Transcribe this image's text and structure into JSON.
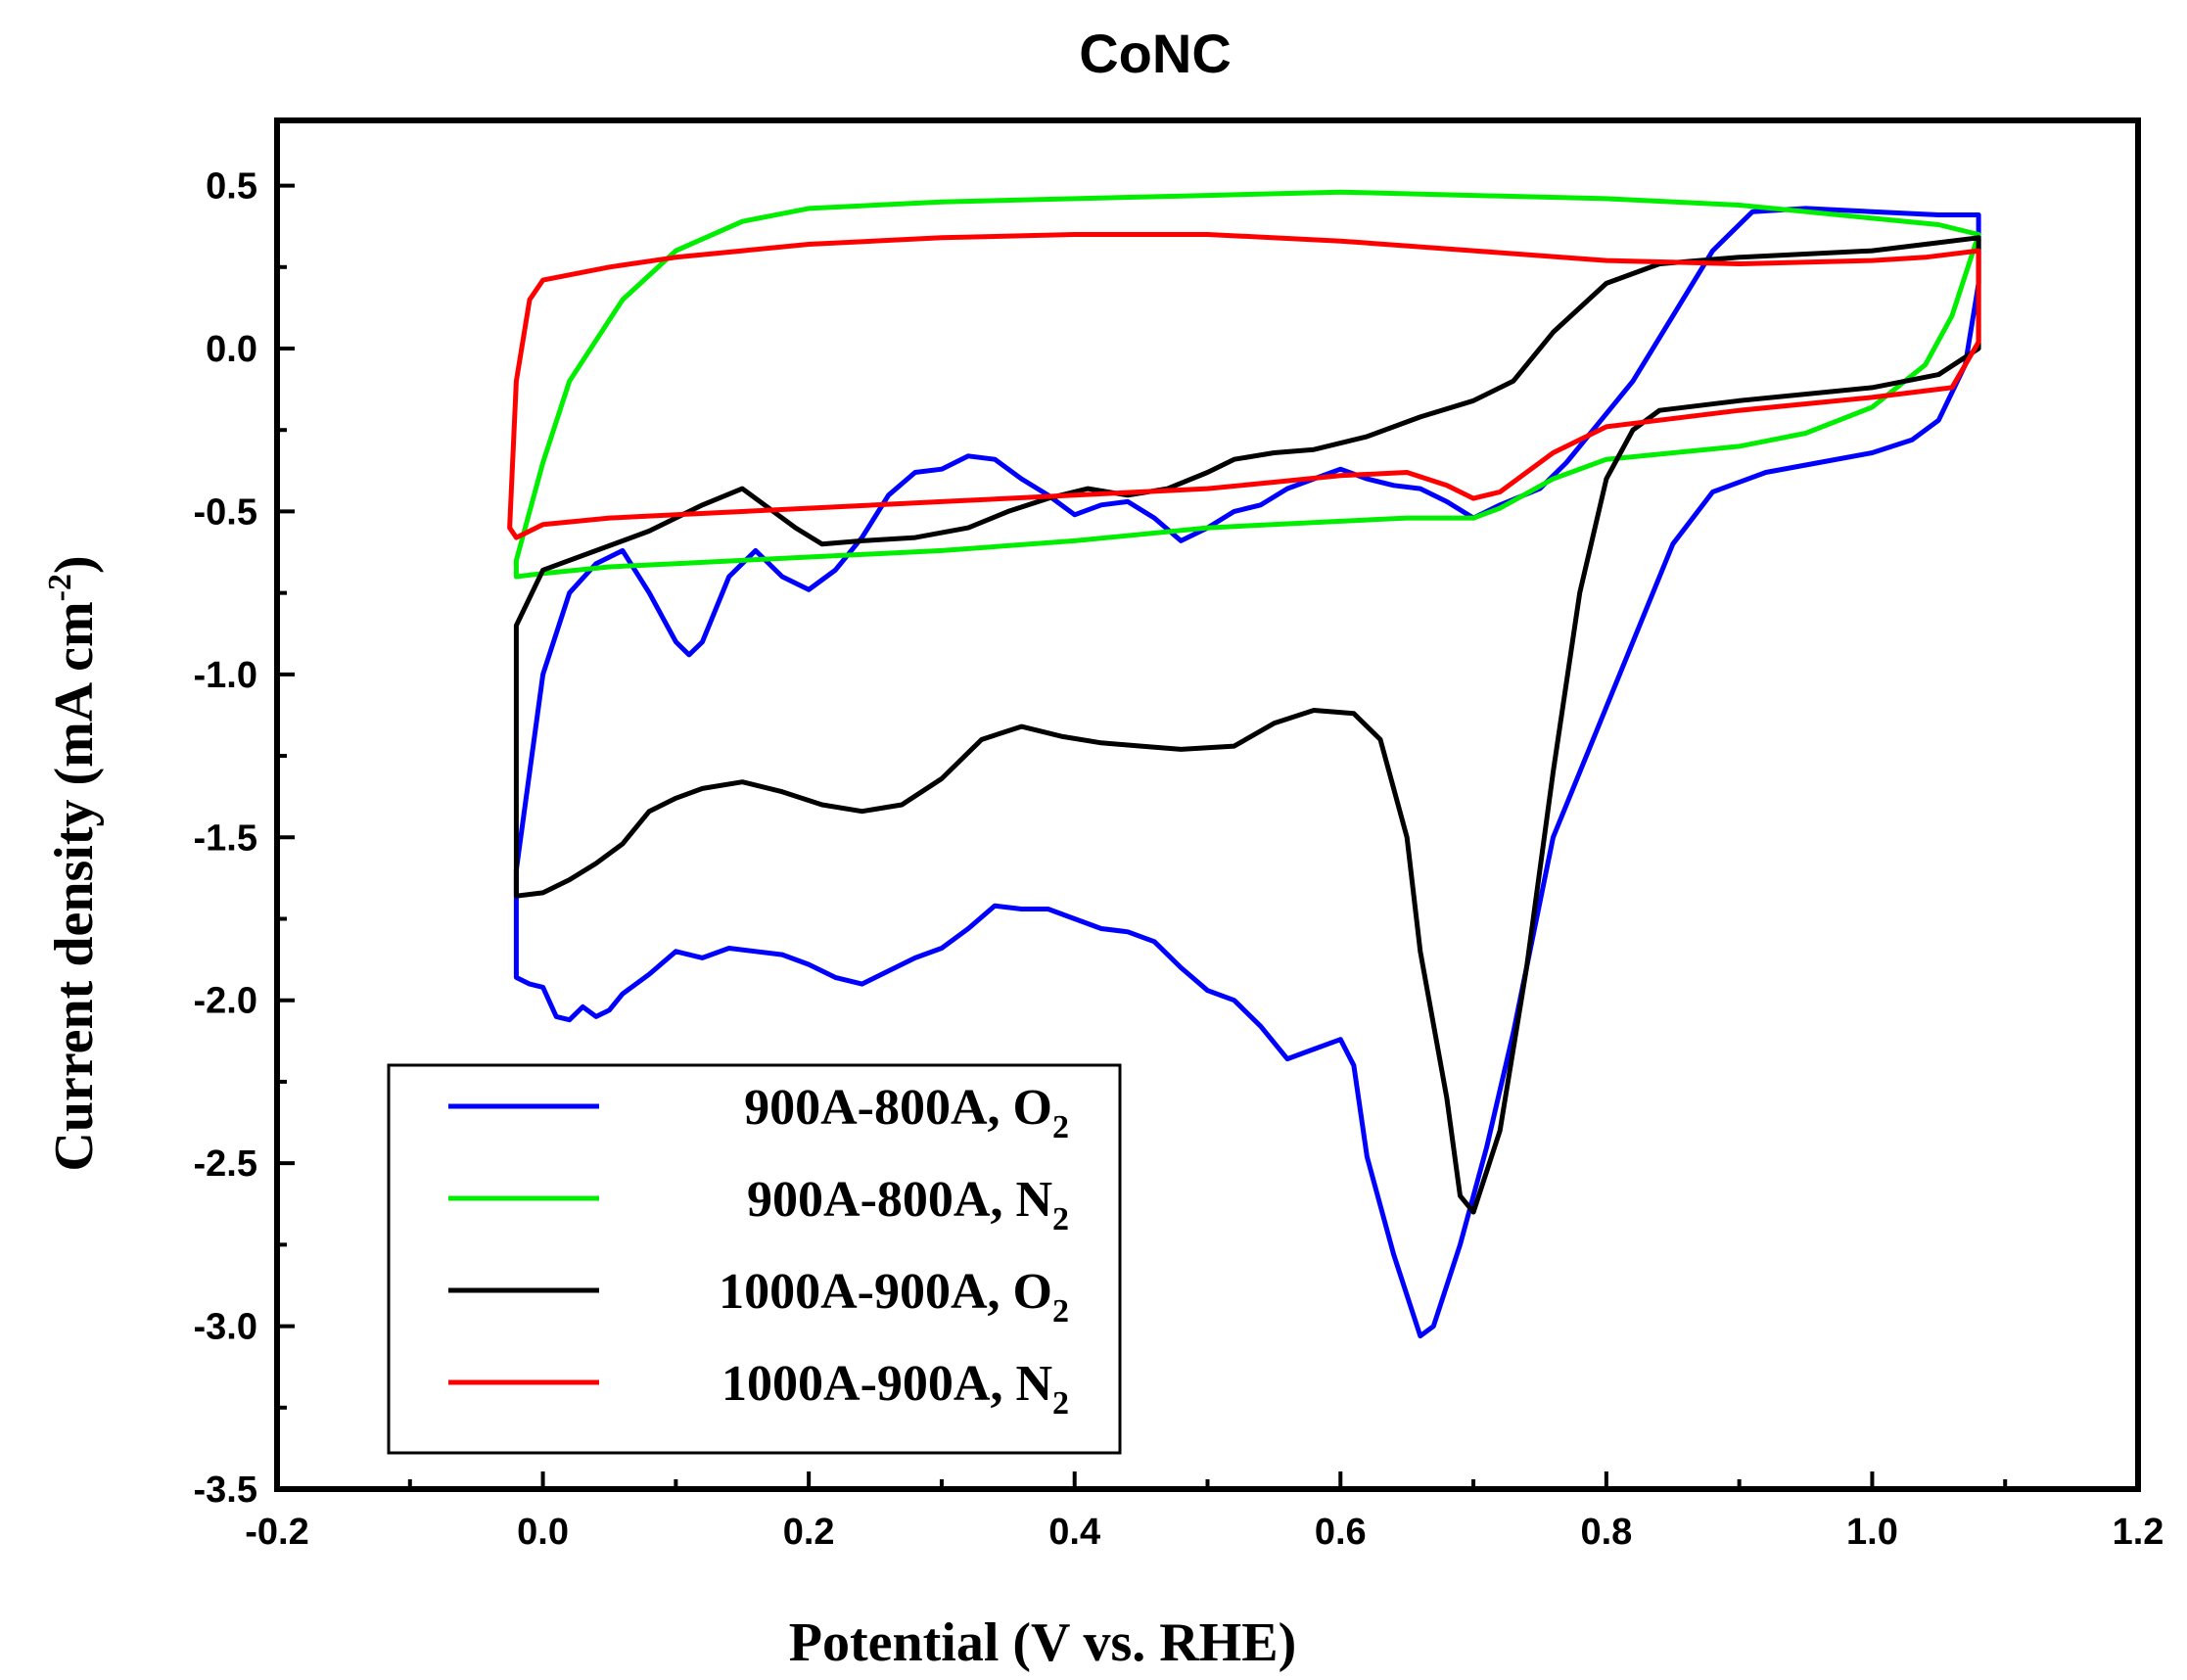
{
  "chart_data": {
    "type": "line",
    "title": "CoNC",
    "xlabel": "Potential (V vs. RHE)",
    "ylabel_main": "Current density (mA cm",
    "ylabel_sup": "-2",
    "ylabel_close": ")",
    "xlim": [
      -0.2,
      1.2
    ],
    "ylim": [
      -3.5,
      0.7
    ],
    "xticks": [
      -0.2,
      0.0,
      0.2,
      0.4,
      0.6,
      0.8,
      1.0,
      1.2
    ],
    "xtick_labels": [
      "-0.2",
      "0.0",
      "0.2",
      "0.4",
      "0.6",
      "0.8",
      "1.0",
      "1.2"
    ],
    "yticks": [
      0.5,
      0.0,
      -0.5,
      -1.0,
      -1.5,
      -2.0,
      -2.5,
      -3.0,
      -3.5
    ],
    "ytick_labels": [
      "0.5",
      "0.0",
      "-0.5",
      "-1.0",
      "-1.5",
      "-2.0",
      "-2.5",
      "-3.0",
      "-3.5"
    ],
    "legend_position": "bottom-left",
    "series": [
      {
        "name": "900A-800A, O2",
        "label_main": "900A-800A, O",
        "label_sub": "2",
        "color": "#0000ff",
        "points": [
          [
            -0.02,
            -1.93
          ],
          [
            -0.01,
            -1.95
          ],
          [
            0.0,
            -1.96
          ],
          [
            0.01,
            -2.05
          ],
          [
            0.02,
            -2.06
          ],
          [
            0.03,
            -2.02
          ],
          [
            0.04,
            -2.05
          ],
          [
            0.05,
            -2.03
          ],
          [
            0.06,
            -1.98
          ],
          [
            0.08,
            -1.92
          ],
          [
            0.1,
            -1.85
          ],
          [
            0.12,
            -1.87
          ],
          [
            0.14,
            -1.84
          ],
          [
            0.16,
            -1.85
          ],
          [
            0.18,
            -1.86
          ],
          [
            0.2,
            -1.89
          ],
          [
            0.22,
            -1.93
          ],
          [
            0.24,
            -1.95
          ],
          [
            0.26,
            -1.91
          ],
          [
            0.28,
            -1.87
          ],
          [
            0.3,
            -1.84
          ],
          [
            0.32,
            -1.78
          ],
          [
            0.34,
            -1.71
          ],
          [
            0.36,
            -1.72
          ],
          [
            0.38,
            -1.72
          ],
          [
            0.4,
            -1.75
          ],
          [
            0.42,
            -1.78
          ],
          [
            0.44,
            -1.79
          ],
          [
            0.46,
            -1.82
          ],
          [
            0.48,
            -1.9
          ],
          [
            0.5,
            -1.97
          ],
          [
            0.52,
            -2.0
          ],
          [
            0.54,
            -2.08
          ],
          [
            0.56,
            -2.18
          ],
          [
            0.58,
            -2.15
          ],
          [
            0.6,
            -2.12
          ],
          [
            0.61,
            -2.2
          ],
          [
            0.62,
            -2.48
          ],
          [
            0.64,
            -2.78
          ],
          [
            0.66,
            -3.03
          ],
          [
            0.67,
            -3.0
          ],
          [
            0.69,
            -2.75
          ],
          [
            0.71,
            -2.45
          ],
          [
            0.73,
            -2.1
          ],
          [
            0.76,
            -1.5
          ],
          [
            0.8,
            -1.1
          ],
          [
            0.83,
            -0.8
          ],
          [
            0.85,
            -0.6
          ],
          [
            0.88,
            -0.44
          ],
          [
            0.92,
            -0.38
          ],
          [
            0.96,
            -0.35
          ],
          [
            1.0,
            -0.32
          ],
          [
            1.03,
            -0.28
          ],
          [
            1.05,
            -0.22
          ],
          [
            1.07,
            -0.05
          ],
          [
            1.08,
            0.2
          ],
          [
            1.08,
            0.41
          ],
          [
            1.05,
            0.41
          ],
          [
            1.0,
            0.42
          ],
          [
            0.95,
            0.43
          ],
          [
            0.91,
            0.42
          ],
          [
            0.88,
            0.3
          ],
          [
            0.85,
            0.1
          ],
          [
            0.82,
            -0.1
          ],
          [
            0.79,
            -0.25
          ],
          [
            0.77,
            -0.35
          ],
          [
            0.75,
            -0.43
          ],
          [
            0.72,
            -0.48
          ],
          [
            0.7,
            -0.52
          ],
          [
            0.68,
            -0.47
          ],
          [
            0.66,
            -0.43
          ],
          [
            0.64,
            -0.42
          ],
          [
            0.62,
            -0.4
          ],
          [
            0.6,
            -0.37
          ],
          [
            0.58,
            -0.4
          ],
          [
            0.56,
            -0.43
          ],
          [
            0.54,
            -0.48
          ],
          [
            0.52,
            -0.5
          ],
          [
            0.5,
            -0.55
          ],
          [
            0.48,
            -0.59
          ],
          [
            0.46,
            -0.52
          ],
          [
            0.44,
            -0.47
          ],
          [
            0.42,
            -0.48
          ],
          [
            0.4,
            -0.51
          ],
          [
            0.38,
            -0.45
          ],
          [
            0.36,
            -0.4
          ],
          [
            0.34,
            -0.34
          ],
          [
            0.32,
            -0.33
          ],
          [
            0.3,
            -0.37
          ],
          [
            0.28,
            -0.38
          ],
          [
            0.26,
            -0.45
          ],
          [
            0.24,
            -0.58
          ],
          [
            0.22,
            -0.68
          ],
          [
            0.2,
            -0.74
          ],
          [
            0.18,
            -0.7
          ],
          [
            0.16,
            -0.62
          ],
          [
            0.14,
            -0.7
          ],
          [
            0.12,
            -0.9
          ],
          [
            0.11,
            -0.94
          ],
          [
            0.1,
            -0.9
          ],
          [
            0.08,
            -0.75
          ],
          [
            0.06,
            -0.62
          ],
          [
            0.04,
            -0.66
          ],
          [
            0.02,
            -0.75
          ],
          [
            0.0,
            -1.0
          ],
          [
            -0.02,
            -1.6
          ]
        ]
      },
      {
        "name": "900A-800A, N2",
        "label_main": "900A-800A, N",
        "label_sub": "2",
        "color": "#00ee00",
        "points": [
          [
            -0.02,
            -0.7
          ],
          [
            0.0,
            -0.69
          ],
          [
            0.05,
            -0.67
          ],
          [
            0.1,
            -0.66
          ],
          [
            0.2,
            -0.64
          ],
          [
            0.3,
            -0.62
          ],
          [
            0.4,
            -0.59
          ],
          [
            0.5,
            -0.55
          ],
          [
            0.6,
            -0.53
          ],
          [
            0.65,
            -0.52
          ],
          [
            0.7,
            -0.52
          ],
          [
            0.72,
            -0.49
          ],
          [
            0.76,
            -0.4
          ],
          [
            0.8,
            -0.34
          ],
          [
            0.9,
            -0.3
          ],
          [
            0.95,
            -0.26
          ],
          [
            1.0,
            -0.18
          ],
          [
            1.04,
            -0.05
          ],
          [
            1.06,
            0.1
          ],
          [
            1.08,
            0.35
          ],
          [
            1.05,
            0.38
          ],
          [
            1.0,
            0.4
          ],
          [
            0.9,
            0.44
          ],
          [
            0.8,
            0.46
          ],
          [
            0.7,
            0.47
          ],
          [
            0.6,
            0.48
          ],
          [
            0.5,
            0.47
          ],
          [
            0.4,
            0.46
          ],
          [
            0.3,
            0.45
          ],
          [
            0.2,
            0.43
          ],
          [
            0.15,
            0.39
          ],
          [
            0.1,
            0.3
          ],
          [
            0.06,
            0.15
          ],
          [
            0.02,
            -0.1
          ],
          [
            0.0,
            -0.35
          ],
          [
            -0.02,
            -0.65
          ]
        ]
      },
      {
        "name": "1000A-900A, O2",
        "label_main": "1000A-900A, O",
        "label_sub": "2",
        "color": "#000000",
        "points": [
          [
            -0.02,
            -1.68
          ],
          [
            0.0,
            -1.67
          ],
          [
            0.02,
            -1.63
          ],
          [
            0.04,
            -1.58
          ],
          [
            0.06,
            -1.52
          ],
          [
            0.08,
            -1.42
          ],
          [
            0.1,
            -1.38
          ],
          [
            0.12,
            -1.35
          ],
          [
            0.15,
            -1.33
          ],
          [
            0.18,
            -1.36
          ],
          [
            0.21,
            -1.4
          ],
          [
            0.24,
            -1.42
          ],
          [
            0.27,
            -1.4
          ],
          [
            0.3,
            -1.32
          ],
          [
            0.33,
            -1.2
          ],
          [
            0.36,
            -1.16
          ],
          [
            0.39,
            -1.19
          ],
          [
            0.42,
            -1.21
          ],
          [
            0.45,
            -1.22
          ],
          [
            0.48,
            -1.23
          ],
          [
            0.52,
            -1.22
          ],
          [
            0.55,
            -1.15
          ],
          [
            0.58,
            -1.11
          ],
          [
            0.61,
            -1.12
          ],
          [
            0.63,
            -1.2
          ],
          [
            0.65,
            -1.5
          ],
          [
            0.66,
            -1.85
          ],
          [
            0.68,
            -2.3
          ],
          [
            0.69,
            -2.6
          ],
          [
            0.7,
            -2.65
          ],
          [
            0.72,
            -2.4
          ],
          [
            0.74,
            -1.9
          ],
          [
            0.76,
            -1.3
          ],
          [
            0.78,
            -0.75
          ],
          [
            0.8,
            -0.4
          ],
          [
            0.82,
            -0.25
          ],
          [
            0.84,
            -0.19
          ],
          [
            0.9,
            -0.16
          ],
          [
            1.0,
            -0.12
          ],
          [
            1.05,
            -0.08
          ],
          [
            1.08,
            0.0
          ],
          [
            1.08,
            0.34
          ],
          [
            1.04,
            0.32
          ],
          [
            1.0,
            0.3
          ],
          [
            0.9,
            0.28
          ],
          [
            0.84,
            0.26
          ],
          [
            0.8,
            0.2
          ],
          [
            0.76,
            0.05
          ],
          [
            0.73,
            -0.1
          ],
          [
            0.7,
            -0.16
          ],
          [
            0.66,
            -0.21
          ],
          [
            0.62,
            -0.27
          ],
          [
            0.58,
            -0.31
          ],
          [
            0.55,
            -0.32
          ],
          [
            0.52,
            -0.34
          ],
          [
            0.5,
            -0.38
          ],
          [
            0.47,
            -0.43
          ],
          [
            0.44,
            -0.45
          ],
          [
            0.41,
            -0.43
          ],
          [
            0.38,
            -0.46
          ],
          [
            0.35,
            -0.5
          ],
          [
            0.32,
            -0.55
          ],
          [
            0.28,
            -0.58
          ],
          [
            0.24,
            -0.59
          ],
          [
            0.21,
            -0.6
          ],
          [
            0.19,
            -0.55
          ],
          [
            0.15,
            -0.43
          ],
          [
            0.12,
            -0.48
          ],
          [
            0.08,
            -0.56
          ],
          [
            0.04,
            -0.62
          ],
          [
            0.0,
            -0.68
          ],
          [
            -0.02,
            -0.85
          ]
        ]
      },
      {
        "name": "1000A-900A, N2",
        "label_main": "1000A-900A, N",
        "label_sub": "2",
        "color": "#ff0000",
        "points": [
          [
            -0.02,
            -0.58
          ],
          [
            0.0,
            -0.54
          ],
          [
            0.05,
            -0.52
          ],
          [
            0.1,
            -0.51
          ],
          [
            0.2,
            -0.49
          ],
          [
            0.3,
            -0.47
          ],
          [
            0.4,
            -0.45
          ],
          [
            0.5,
            -0.43
          ],
          [
            0.55,
            -0.41
          ],
          [
            0.6,
            -0.39
          ],
          [
            0.65,
            -0.38
          ],
          [
            0.68,
            -0.42
          ],
          [
            0.7,
            -0.46
          ],
          [
            0.72,
            -0.44
          ],
          [
            0.76,
            -0.32
          ],
          [
            0.8,
            -0.24
          ],
          [
            0.9,
            -0.19
          ],
          [
            1.0,
            -0.15
          ],
          [
            1.06,
            -0.12
          ],
          [
            1.08,
            0.02
          ],
          [
            1.08,
            0.3
          ],
          [
            1.04,
            0.28
          ],
          [
            1.0,
            0.27
          ],
          [
            0.9,
            0.26
          ],
          [
            0.8,
            0.27
          ],
          [
            0.7,
            0.3
          ],
          [
            0.6,
            0.33
          ],
          [
            0.5,
            0.35
          ],
          [
            0.4,
            0.35
          ],
          [
            0.3,
            0.34
          ],
          [
            0.2,
            0.32
          ],
          [
            0.1,
            0.28
          ],
          [
            0.05,
            0.25
          ],
          [
            0.0,
            0.21
          ],
          [
            -0.01,
            0.15
          ],
          [
            -0.02,
            -0.1
          ],
          [
            -0.025,
            -0.55
          ]
        ]
      }
    ]
  }
}
